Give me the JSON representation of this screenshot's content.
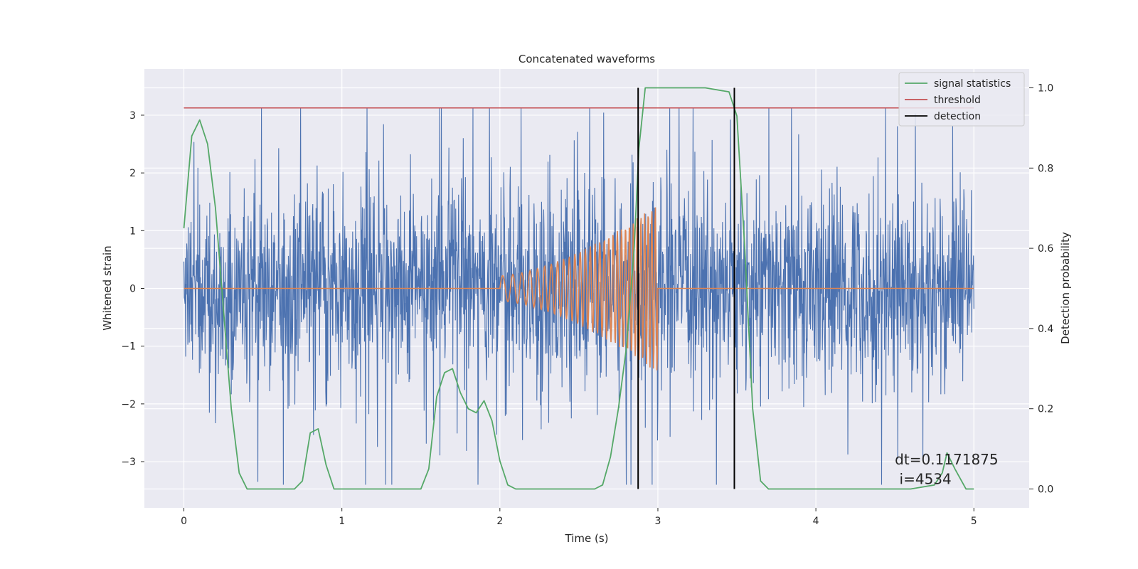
{
  "chart_data": {
    "type": "line",
    "title": "Concatenated waveforms",
    "xlabel": "Time (s)",
    "ylabel_left": "Whitened strain",
    "ylabel_right": "Detection probability",
    "xlim": [
      -0.25,
      5.35
    ],
    "ylim_left": [
      -3.8,
      3.8
    ],
    "ylim_right": [
      -0.047,
      1.047
    ],
    "xticks": [
      0,
      1,
      2,
      3,
      4,
      5
    ],
    "yticks_left": [
      -3,
      -2,
      -1,
      0,
      1,
      2,
      3
    ],
    "yticks_right": [
      0.0,
      0.2,
      0.4,
      0.6,
      0.8,
      1.0
    ],
    "grid": true,
    "legend_position": "top-right",
    "series": [
      {
        "name": "",
        "color": "#4c72b0",
        "description": "noisy whitened strain, amplitude roughly -3.4 to 3.1 over t=0..5",
        "x_range": [
          0,
          5
        ]
      },
      {
        "name": "",
        "color": "#dd8452",
        "description": "injected chirp waveform, nonzero on t=2..3 growing to about ±1.5, zero elsewhere",
        "x_range": [
          0,
          5
        ]
      },
      {
        "name": "signal statistics",
        "color": "#55a868",
        "x": [
          0,
          0.05,
          0.1,
          0.15,
          0.2,
          0.25,
          0.3,
          0.35,
          0.4,
          0.7,
          0.75,
          0.8,
          0.85,
          0.9,
          0.95,
          1.5,
          1.55,
          1.6,
          1.65,
          1.7,
          1.75,
          1.8,
          1.85,
          1.9,
          1.95,
          2.0,
          2.05,
          2.1,
          2.5,
          2.6,
          2.65,
          2.7,
          2.75,
          2.8,
          2.85,
          2.88,
          2.92,
          3.0,
          3.3,
          3.45,
          3.5,
          3.55,
          3.6,
          3.65,
          3.7,
          4.2,
          4.6,
          4.75,
          4.8,
          4.83,
          4.88,
          4.95,
          5.0
        ],
        "y": [
          0.65,
          0.88,
          0.92,
          0.86,
          0.7,
          0.45,
          0.2,
          0.04,
          0.0,
          0.0,
          0.02,
          0.14,
          0.15,
          0.06,
          0.0,
          0.0,
          0.05,
          0.23,
          0.29,
          0.3,
          0.24,
          0.2,
          0.19,
          0.22,
          0.17,
          0.07,
          0.01,
          0.0,
          0.0,
          0.0,
          0.01,
          0.08,
          0.2,
          0.35,
          0.6,
          0.85,
          1.0,
          1.0,
          1.0,
          0.99,
          0.93,
          0.6,
          0.2,
          0.02,
          0.0,
          0.0,
          0.0,
          0.01,
          0.04,
          0.09,
          0.05,
          0.0,
          0.0
        ]
      },
      {
        "name": "threshold",
        "color": "#c44e52",
        "value": 0.95,
        "x_range": [
          0,
          5
        ]
      },
      {
        "name": "detection",
        "color": "#000000",
        "x_values": [
          2.875,
          3.484
        ],
        "y_range": [
          0,
          1
        ]
      }
    ],
    "annotations": [
      {
        "text": "dt=0.1171875",
        "x": 4.5,
        "y": -3.05
      },
      {
        "text": " i=4534",
        "x": 4.5,
        "y": -3.39
      }
    ]
  }
}
